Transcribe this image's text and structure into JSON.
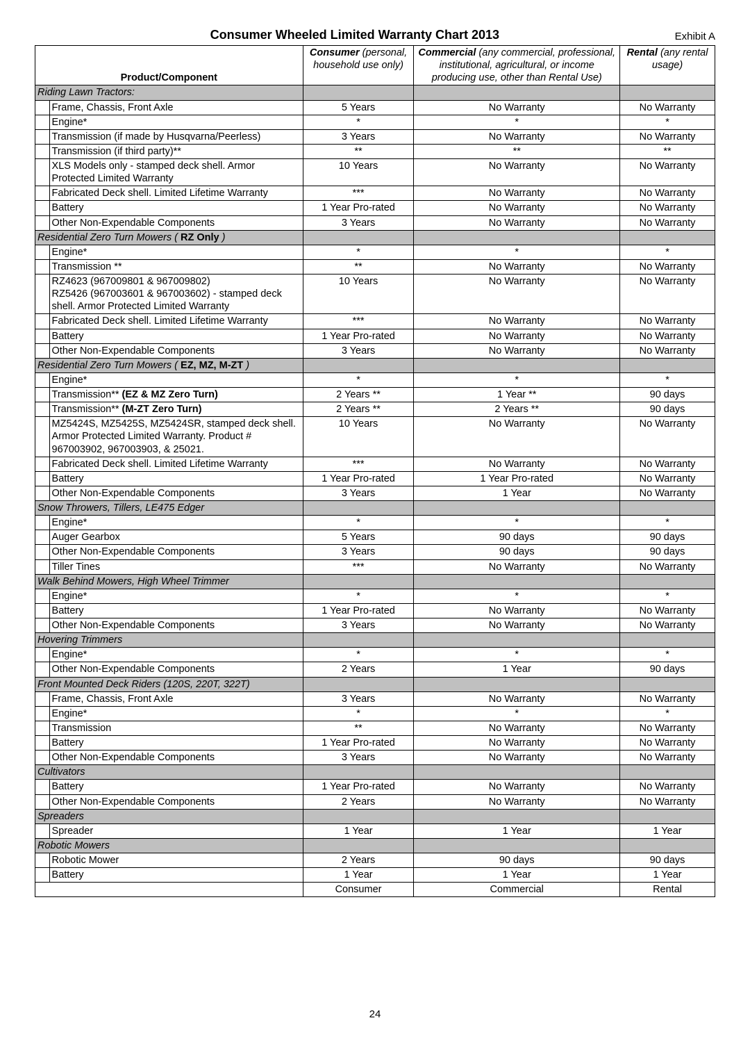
{
  "title": "Consumer Wheeled Limited Warranty Chart 2013",
  "exhibit": "Exhibit A",
  "page_number": "24",
  "colors": {
    "section_bg": "#c0c0c0",
    "border": "#000000",
    "bg": "#ffffff"
  },
  "header": {
    "product": "Product/Component",
    "consumer_label": "Consumer",
    "consumer_note": "(personal, household use only)",
    "commercial_label": "Commercial",
    "commercial_note": "(any commercial, professional, institutional, agricultural, or income producing use, other than Rental Use)",
    "rental_label": "Rental",
    "rental_note": "(any rental usage)"
  },
  "footer": {
    "consumer": "Consumer",
    "commercial": "Commercial",
    "rental": "Rental"
  },
  "rows": [
    {
      "type": "section",
      "label": "Riding Lawn Tractors:"
    },
    {
      "type": "data",
      "product": "Frame, Chassis, Front Axle",
      "consumer": "5 Years",
      "commercial": "No Warranty",
      "rental": "No Warranty"
    },
    {
      "type": "data",
      "product": "Engine*",
      "consumer": "*",
      "commercial": "*",
      "rental": "*"
    },
    {
      "type": "data",
      "product": "Transmission (if made by Husqvarna/Peerless)",
      "consumer": "3 Years",
      "commercial": "No Warranty",
      "rental": "No Warranty"
    },
    {
      "type": "data",
      "product": "Transmission (if third party)**",
      "consumer": "**",
      "commercial": "**",
      "rental": "**"
    },
    {
      "type": "data",
      "product": "XLS Models only - stamped deck shell. Armor Protected Limited Warranty",
      "consumer": "10 Years",
      "commercial": "No Warranty",
      "rental": "No Warranty"
    },
    {
      "type": "data",
      "product": "Fabricated Deck shell. Limited Lifetime Warranty",
      "consumer": "***",
      "commercial": "No Warranty",
      "rental": "No Warranty"
    },
    {
      "type": "data",
      "product": "Battery",
      "consumer": "1 Year Pro-rated",
      "commercial": "No Warranty",
      "rental": "No Warranty"
    },
    {
      "type": "data",
      "product": "Other Non-Expendable Components",
      "consumer": "3 Years",
      "commercial": "No Warranty",
      "rental": "No Warranty"
    },
    {
      "type": "section",
      "label": "Residential Zero Turn Mowers ( ",
      "strong": "RZ Only",
      "tail": " )"
    },
    {
      "type": "data",
      "product": "Engine*",
      "consumer": "*",
      "commercial": "*",
      "rental": "*"
    },
    {
      "type": "data",
      "product": "Transmission **",
      "consumer": "**",
      "commercial": "No Warranty",
      "rental": "No Warranty"
    },
    {
      "type": "data",
      "product": "RZ4623 (967009801 & 967009802)\nRZ5426 (967003601 & 967003602) - stamped deck shell. Armor Protected Limited Warranty",
      "consumer": "10 Years",
      "commercial": "No Warranty",
      "rental": "No Warranty"
    },
    {
      "type": "data",
      "product": "Fabricated Deck shell. Limited Lifetime Warranty",
      "consumer": "***",
      "commercial": "No Warranty",
      "rental": "No Warranty"
    },
    {
      "type": "data",
      "product": "Battery",
      "consumer": "1 Year Pro-rated",
      "commercial": "No Warranty",
      "rental": "No Warranty"
    },
    {
      "type": "data",
      "product": "Other Non-Expendable Components",
      "consumer": "3 Years",
      "commercial": "No Warranty",
      "rental": "No Warranty"
    },
    {
      "type": "section",
      "label": "Residential Zero Turn Mowers ( ",
      "strong": "EZ, MZ, M-ZT",
      "tail": " )"
    },
    {
      "type": "data",
      "product": "Engine*",
      "consumer": "*",
      "commercial": "*",
      "rental": "*"
    },
    {
      "type": "data",
      "product_html": "Transmission** <b>(EZ & MZ Zero Turn)</b>",
      "consumer": "2 Years **",
      "commercial": "1 Year **",
      "rental": "90 days"
    },
    {
      "type": "data",
      "product_html": "Transmission** <b>(M-ZT Zero Turn)</b>",
      "consumer": "2 Years **",
      "commercial": "2 Years **",
      "rental": "90 days"
    },
    {
      "type": "data",
      "product": "MZ5424S, MZ5425S, MZ5424SR, stamped deck shell. Armor Protected Limited Warranty. Product # 967003902, 967003903, & 25021.",
      "consumer": "10 Years",
      "commercial": "No Warranty",
      "rental": "No Warranty"
    },
    {
      "type": "data",
      "product": "Fabricated Deck shell. Limited Lifetime Warranty",
      "consumer": "***",
      "commercial": "No Warranty",
      "rental": "No Warranty"
    },
    {
      "type": "data",
      "product": "Battery",
      "consumer": "1 Year Pro-rated",
      "commercial": "1 Year Pro-rated",
      "rental": "No Warranty"
    },
    {
      "type": "data",
      "product": "Other Non-Expendable Components",
      "consumer": "3 Years",
      "commercial": "1 Year",
      "rental": "No Warranty"
    },
    {
      "type": "section",
      "label": "Snow Throwers, Tillers, LE475 Edger"
    },
    {
      "type": "data",
      "product": "Engine*",
      "consumer": "*",
      "commercial": "*",
      "rental": "*"
    },
    {
      "type": "data",
      "product": "Auger Gearbox",
      "consumer": "5 Years",
      "commercial": "90 days",
      "rental": "90 days"
    },
    {
      "type": "data",
      "product": "Other Non-Expendable Components",
      "consumer": "3 Years",
      "commercial": "90 days",
      "rental": "90 days"
    },
    {
      "type": "data",
      "product": "Tiller Tines",
      "consumer": "***",
      "commercial": "No Warranty",
      "rental": "No Warranty"
    },
    {
      "type": "section",
      "label": "Walk Behind Mowers, High Wheel Trimmer"
    },
    {
      "type": "data",
      "product": "Engine*",
      "consumer": "*",
      "commercial": "*",
      "rental": "*"
    },
    {
      "type": "data",
      "product": "Battery",
      "consumer": "1 Year Pro-rated",
      "commercial": "No Warranty",
      "rental": "No Warranty"
    },
    {
      "type": "data",
      "product": "Other Non-Expendable Components",
      "consumer": "3 Years",
      "commercial": "No Warranty",
      "rental": "No Warranty"
    },
    {
      "type": "section",
      "label": "Hovering Trimmers"
    },
    {
      "type": "data",
      "product": "Engine*",
      "consumer": "*",
      "commercial": "*",
      "rental": "*"
    },
    {
      "type": "data",
      "product": "Other Non-Expendable Components",
      "consumer": "2 Years",
      "commercial": "1 Year",
      "rental": "90 days"
    },
    {
      "type": "section",
      "label": "Front Mounted Deck Riders (120S, 220T, 322T)"
    },
    {
      "type": "data",
      "product": "Frame, Chassis, Front Axle",
      "consumer": "3 Years",
      "commercial": "No Warranty",
      "rental": "No Warranty"
    },
    {
      "type": "data",
      "product": "Engine*",
      "consumer": "*",
      "commercial": "*",
      "rental": "*"
    },
    {
      "type": "data",
      "product": "Transmission",
      "consumer": "**",
      "commercial": "No Warranty",
      "rental": "No Warranty"
    },
    {
      "type": "data",
      "product": "Battery",
      "consumer": "1 Year Pro-rated",
      "commercial": "No Warranty",
      "rental": "No Warranty"
    },
    {
      "type": "data",
      "product": "Other Non-Expendable Components",
      "consumer": "3 Years",
      "commercial": "No Warranty",
      "rental": "No Warranty"
    },
    {
      "type": "section",
      "label": "Cultivators"
    },
    {
      "type": "data",
      "product": "Battery",
      "consumer": "1 Year Pro-rated",
      "commercial": "No Warranty",
      "rental": "No Warranty"
    },
    {
      "type": "data",
      "product": "Other Non-Expendable Components",
      "consumer": "2 Years",
      "commercial": "No Warranty",
      "rental": "No Warranty"
    },
    {
      "type": "section",
      "label": "Spreaders"
    },
    {
      "type": "data",
      "product": "Spreader",
      "consumer": "1 Year",
      "commercial": "1 Year",
      "rental": "1 Year"
    },
    {
      "type": "section",
      "label": "Robotic Mowers"
    },
    {
      "type": "data",
      "product": "Robotic Mower",
      "consumer": "2 Years",
      "commercial": "90 days",
      "rental": "90 days"
    },
    {
      "type": "data",
      "product": "Battery",
      "consumer": "1 Year",
      "commercial": "1 Year",
      "rental": "1 Year"
    }
  ]
}
